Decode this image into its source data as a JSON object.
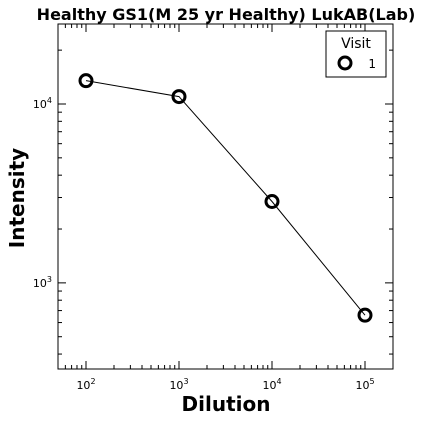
{
  "chart_data": {
    "type": "line",
    "title": "Healthy GS1(M 25 yr Healthy) LukAB(Lab)",
    "xlabel": "Dilution",
    "ylabel": "Intensity",
    "xscale": "log",
    "yscale": "log",
    "xlim": [
      50,
      200000
    ],
    "ylim": [
      330,
      28000
    ],
    "grid": false,
    "legend": {
      "title": "Visit",
      "placement": "top-right",
      "entries": [
        "1"
      ]
    },
    "x_ticks": [
      {
        "base": "10",
        "exp": "2",
        "value": 100
      },
      {
        "base": "10",
        "exp": "3",
        "value": 1000
      },
      {
        "base": "10",
        "exp": "4",
        "value": 10000
      },
      {
        "base": "10",
        "exp": "5",
        "value": 100000
      }
    ],
    "y_ticks": [
      {
        "base": "10",
        "exp": "3",
        "value": 1000
      },
      {
        "base": "10",
        "exp": "4",
        "value": 10000
      }
    ],
    "series": [
      {
        "name": "1",
        "x": [
          100,
          1000,
          10000,
          100000
        ],
        "y": [
          13500,
          11000,
          2850,
          660
        ]
      }
    ]
  }
}
